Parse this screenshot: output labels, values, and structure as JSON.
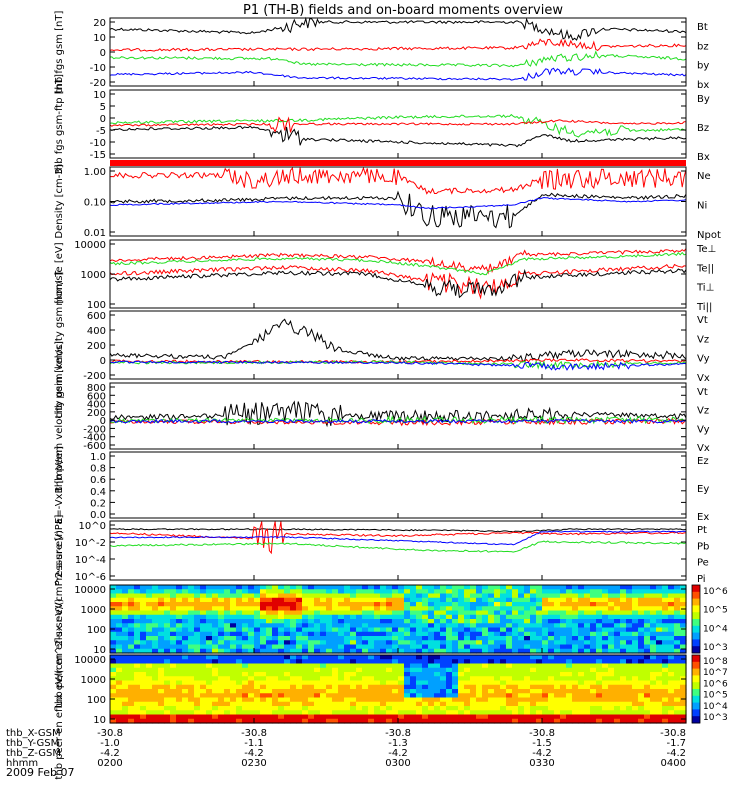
{
  "title": "P1 (TH-B) fields and on-board moments overview",
  "date_label": "2009 Feb 07",
  "colors": {
    "black": "#000000",
    "red": "#ff0000",
    "green": "#22dd22",
    "blue": "#0000ff"
  },
  "orbit": {
    "rows": [
      {
        "label": "thb_X-GSM",
        "values": [
          "-30.8",
          "-30.8",
          "-30.8",
          "-30.8",
          "-30.8"
        ]
      },
      {
        "label": "thb_Y-GSM",
        "values": [
          "-1.0",
          "-1.1",
          "-1.3",
          "-1.5",
          "-1.7"
        ]
      },
      {
        "label": "thb_Z-GSM",
        "values": [
          "-4.2",
          "-4.2",
          "-4.2",
          "-4.2",
          "-4.2"
        ]
      },
      {
        "label": "hhmm",
        "values": [
          "0200",
          "0230",
          "0300",
          "0330",
          "0400"
        ]
      }
    ]
  },
  "chart_data": [
    {
      "type": "line",
      "ylabel": "thb fgs gsm [nT]",
      "ylim": [
        -20,
        20
      ],
      "yticks": [
        "20",
        "10",
        "0",
        "-10",
        "-20"
      ],
      "series": [
        {
          "name": "Bt",
          "color": "#000000"
        },
        {
          "name": "bz",
          "color": "#ff0000"
        },
        {
          "name": "by",
          "color": "#22dd22"
        },
        {
          "name": "bx",
          "color": "#0000ff"
        }
      ]
    },
    {
      "type": "line",
      "ylabel": "thb fgs gsm-ftp [nT]",
      "ylim": [
        -17,
        11
      ],
      "yticks": [
        "10",
        "5",
        "0",
        "-5",
        "-10",
        "-15"
      ],
      "series": [
        {
          "name": "By",
          "color": "#22dd22"
        },
        {
          "name": "Bz",
          "color": "#ff0000"
        },
        {
          "name": "Bx",
          "color": "#000000"
        }
      ]
    },
    {
      "type": "line",
      "ylabel": "Density [cm-3]",
      "scale": "log",
      "ylim": [
        0.01,
        1.5
      ],
      "yticks": [
        "1.00",
        "0.10",
        "0.01"
      ],
      "series": [
        {
          "name": "Ne",
          "color": "#ff0000"
        },
        {
          "name": "Ni",
          "color": "#000000"
        },
        {
          "name": "Npot",
          "color": "#0000ff"
        }
      ]
    },
    {
      "type": "line",
      "ylabel": "mom Te [eV]",
      "scale": "log",
      "ylim": [
        10,
        10000
      ],
      "yticks": [
        "10000",
        "1000",
        "100"
      ],
      "series": [
        {
          "name": "Te⊥",
          "color": "#ff0000"
        },
        {
          "name": "Te||",
          "color": "#000000"
        },
        {
          "name": "Ti⊥",
          "color": "#ff0000"
        },
        {
          "name": "Ti||",
          "color": "#22dd22"
        }
      ]
    },
    {
      "type": "line",
      "ylabel": "thb peim velocity gsm [km/s]",
      "ylim": [
        -200,
        600
      ],
      "yticks": [
        "600",
        "400",
        "200",
        "0",
        "-200"
      ],
      "series": [
        {
          "name": "Vt",
          "color": "#000000"
        },
        {
          "name": "Vz",
          "color": "#ff0000"
        },
        {
          "name": "Vy",
          "color": "#22dd22"
        },
        {
          "name": "Vx",
          "color": "#0000ff"
        }
      ]
    },
    {
      "type": "line",
      "ylabel": "thb peem velocity gsm [km/s]",
      "ylim": [
        -600,
        800
      ],
      "yticks": [
        "800",
        "600",
        "400",
        "200",
        "0",
        "-200",
        "-400",
        "-600"
      ],
      "series": [
        {
          "name": "Vt",
          "color": "#000000"
        },
        {
          "name": "Vz",
          "color": "#ff0000"
        },
        {
          "name": "Vy",
          "color": "#22dd22"
        },
        {
          "name": "Vx",
          "color": "#0000ff"
        }
      ]
    },
    {
      "type": "line",
      "ylabel": "E=-VxB [mV/m]",
      "ylim": [
        0,
        1
      ],
      "yticks": [
        "1.0",
        "0.8",
        "0.6",
        "0.4",
        "0.2",
        "0.0"
      ],
      "series": [
        {
          "name": "Ez",
          "color": "#ff0000"
        },
        {
          "name": "Ey",
          "color": "#22dd22"
        },
        {
          "name": "Ex",
          "color": "#0000ff"
        }
      ]
    },
    {
      "type": "line",
      "ylabel": "Pressure [nPa]",
      "scale": "log",
      "ylim": [
        1e-06,
        1
      ],
      "yticks": [
        "10^0",
        "10^-2",
        "10^-4",
        "10^-6"
      ],
      "series": [
        {
          "name": "Pt",
          "color": "#000000"
        },
        {
          "name": "Pb",
          "color": "#ff0000"
        },
        {
          "name": "Pe",
          "color": "#22dd22"
        },
        {
          "name": "Pi",
          "color": "#0000ff"
        }
      ]
    },
    {
      "type": "heatmap",
      "ylabel": "thb peir en eflux eV/(cm^2-s-sr-eV)",
      "yticks": [
        "10000",
        "1000",
        "100",
        "10"
      ],
      "colorbar": [
        "10^6",
        "10^5",
        "10^4",
        "10^3"
      ]
    },
    {
      "type": "heatmap",
      "ylabel": "thb peer en eflux eV/(cm^2-s-sr-eV)",
      "yticks": [
        "10000",
        "1000",
        "100",
        "10"
      ],
      "colorbar": [
        "10^8",
        "10^7",
        "10^6",
        "10^5",
        "10^4",
        "10^3"
      ]
    }
  ]
}
